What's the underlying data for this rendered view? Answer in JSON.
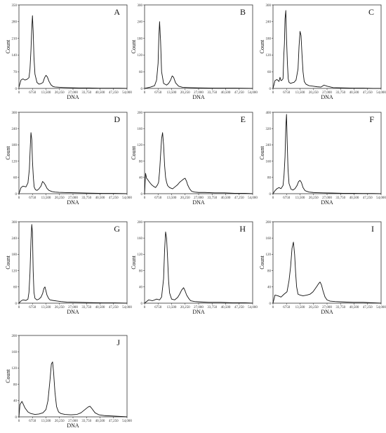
{
  "chart_data": [
    {
      "label": "A",
      "type": "line",
      "xlabel": "DNA",
      "ylabel": "Count",
      "xlim": [
        0,
        54000
      ],
      "ylim": [
        0,
        350
      ],
      "xticks": [
        "0",
        "6750",
        "13,500",
        "20,250",
        "27,000",
        "33,750",
        "40,500",
        "47,250",
        "54,000"
      ],
      "yticks": [
        "0",
        "70",
        "140",
        "210",
        "280",
        "350"
      ],
      "x": [
        0,
        1000,
        2000,
        3000,
        4000,
        5000,
        5500,
        6000,
        6400,
        6750,
        7100,
        7500,
        8000,
        9000,
        10000,
        11000,
        12000,
        12800,
        13500,
        14200,
        15000,
        16000,
        17000,
        18000,
        20000,
        22000,
        25000,
        30000,
        35000,
        40000,
        45000,
        50000,
        54000
      ],
      "y": [
        5,
        35,
        40,
        35,
        38,
        45,
        80,
        160,
        250,
        305,
        240,
        130,
        60,
        25,
        18,
        20,
        25,
        45,
        55,
        48,
        30,
        15,
        8,
        6,
        5,
        4,
        3,
        2,
        2,
        1,
        1,
        1,
        0
      ]
    },
    {
      "label": "B",
      "type": "line",
      "xlabel": "DNA",
      "ylabel": "Count",
      "xlim": [
        0,
        54000
      ],
      "ylim": [
        0,
        300
      ],
      "xticks": [
        "0",
        "6750",
        "13,500",
        "20,250",
        "27,000",
        "33,750",
        "40,500",
        "47,250",
        "54,000"
      ],
      "yticks": [
        "0",
        "60",
        "120",
        "180",
        "240",
        "300"
      ],
      "x": [
        0,
        3000,
        5000,
        6000,
        6750,
        7100,
        7500,
        8000,
        8500,
        9500,
        11000,
        12000,
        13000,
        13800,
        14500,
        15500,
        17000,
        19000,
        22000,
        27000,
        35000,
        45000,
        54000
      ],
      "y": [
        0,
        5,
        10,
        30,
        90,
        180,
        240,
        170,
        60,
        18,
        12,
        18,
        30,
        45,
        40,
        20,
        8,
        4,
        3,
        2,
        1,
        1,
        0
      ]
    },
    {
      "label": "C",
      "type": "line",
      "xlabel": "DNA",
      "ylabel": "Count",
      "xlim": [
        0,
        54000
      ],
      "ylim": [
        0,
        300
      ],
      "xticks": [
        "0",
        "6750",
        "13,500",
        "20,250",
        "27,000",
        "33,750",
        "40,500",
        "47,250",
        "54,000"
      ],
      "yticks": [
        "0",
        "60",
        "120",
        "180",
        "240",
        "300"
      ],
      "x": [
        0,
        1000,
        2000,
        3000,
        3500,
        4000,
        4500,
        5000,
        5400,
        5700,
        6000,
        6400,
        6750,
        7200,
        7600,
        8000,
        8800,
        9500,
        10500,
        11500,
        12500,
        13000,
        13500,
        14000,
        14500,
        15000,
        15600,
        16500,
        18000,
        20000,
        22000,
        24000,
        25500,
        27000,
        30000,
        35000,
        40000,
        45000,
        50000,
        54000
      ],
      "y": [
        0,
        28,
        32,
        25,
        40,
        28,
        30,
        35,
        120,
        160,
        250,
        280,
        180,
        90,
        35,
        22,
        18,
        20,
        22,
        30,
        70,
        150,
        205,
        190,
        120,
        60,
        25,
        15,
        10,
        8,
        6,
        5,
        12,
        8,
        3,
        2,
        1,
        1,
        0,
        0
      ]
    },
    {
      "label": "D",
      "type": "line",
      "xlabel": "DNA",
      "ylabel": "Count",
      "xlim": [
        0,
        54000
      ],
      "ylim": [
        0,
        300
      ],
      "xticks": [
        "0",
        "6750",
        "13,500",
        "20,250",
        "27,000",
        "33,750",
        "40,500",
        "47,250",
        "54,000"
      ],
      "yticks": [
        "0",
        "60",
        "120",
        "180",
        "240",
        "300"
      ],
      "x": [
        0,
        1000,
        2000,
        3500,
        4500,
        5200,
        5700,
        6000,
        6400,
        6750,
        7200,
        7600,
        8200,
        9000,
        10000,
        11000,
        11800,
        12500,
        13200,
        14000,
        15000,
        16500,
        18000,
        20000,
        24000,
        30000,
        35000,
        42000,
        48000,
        54000
      ],
      "y": [
        0,
        22,
        28,
        25,
        40,
        90,
        180,
        225,
        200,
        120,
        60,
        25,
        15,
        12,
        18,
        28,
        45,
        40,
        32,
        20,
        12,
        8,
        6,
        5,
        4,
        3,
        2,
        1,
        1,
        0
      ]
    },
    {
      "label": "E",
      "type": "line",
      "xlabel": "DNA",
      "ylabel": "Count",
      "xlim": [
        0,
        54000
      ],
      "ylim": [
        0,
        200
      ],
      "xticks": [
        "0",
        "6750",
        "13,500",
        "20,250",
        "27,000",
        "33,750",
        "40,500",
        "47,250",
        "54,000"
      ],
      "yticks": [
        "0",
        "40",
        "80",
        "120",
        "160",
        "200"
      ],
      "x": [
        0,
        500,
        1000,
        1500,
        2500,
        3500,
        4500,
        5500,
        6500,
        7000,
        7500,
        8000,
        8500,
        9000,
        9500,
        10000,
        10500,
        11000,
        11500,
        12500,
        14000,
        15500,
        16500,
        17500,
        18500,
        19500,
        20250,
        21000,
        21500,
        22500,
        23500,
        25000,
        27000,
        30000,
        35000,
        40000,
        45000,
        50000,
        54000
      ],
      "y": [
        0,
        50,
        38,
        35,
        28,
        22,
        18,
        15,
        22,
        28,
        55,
        95,
        135,
        150,
        120,
        70,
        40,
        28,
        20,
        15,
        12,
        18,
        22,
        28,
        32,
        36,
        38,
        30,
        22,
        12,
        6,
        4,
        3,
        3,
        2,
        2,
        1,
        1,
        0
      ]
    },
    {
      "label": "F",
      "type": "line",
      "xlabel": "DNA",
      "ylabel": "Count",
      "xlim": [
        0,
        54000
      ],
      "ylim": [
        0,
        400
      ],
      "xticks": [
        "0",
        "6750",
        "13,500",
        "20,250",
        "27,000",
        "33,750",
        "40,500",
        "47,250",
        "54,000"
      ],
      "yticks": [
        "0",
        "80",
        "160",
        "240",
        "320",
        "400"
      ],
      "x": [
        0,
        1000,
        2000,
        3000,
        4000,
        5000,
        5500,
        6000,
        6400,
        6750,
        7100,
        7500,
        8000,
        9000,
        10000,
        11000,
        12000,
        12800,
        13500,
        14200,
        15000,
        16000,
        18000,
        20000,
        22000,
        25000,
        30000,
        35000,
        40000,
        45000,
        50000,
        54000
      ],
      "y": [
        0,
        15,
        25,
        30,
        25,
        40,
        90,
        180,
        330,
        390,
        250,
        120,
        50,
        22,
        18,
        25,
        40,
        60,
        65,
        55,
        30,
        15,
        8,
        6,
        5,
        4,
        3,
        2,
        2,
        1,
        1,
        0
      ]
    },
    {
      "label": "G",
      "type": "line",
      "xlabel": "DNA",
      "ylabel": "Count",
      "xlim": [
        0,
        54000
      ],
      "ylim": [
        0,
        300
      ],
      "xticks": [
        "0",
        "6750",
        "13,500",
        "20,250",
        "27,000",
        "33,750",
        "40,500",
        "47,250",
        "54,000"
      ],
      "yticks": [
        "0",
        "60",
        "120",
        "180",
        "240",
        "300"
      ],
      "x": [
        0,
        1000,
        2000,
        3500,
        4500,
        5000,
        5500,
        6000,
        6400,
        6750,
        7100,
        7500,
        8000,
        9000,
        10000,
        11000,
        11800,
        12500,
        13000,
        13500,
        14000,
        14800,
        15500,
        17000,
        19000,
        21000,
        24000,
        30000,
        36000,
        42000,
        48000,
        54000
      ],
      "y": [
        0,
        8,
        12,
        10,
        15,
        40,
        110,
        230,
        290,
        260,
        120,
        40,
        18,
        12,
        15,
        22,
        35,
        55,
        60,
        45,
        30,
        18,
        12,
        10,
        8,
        6,
        4,
        3,
        2,
        1,
        1,
        0
      ]
    },
    {
      "label": "H",
      "type": "line",
      "xlabel": "DNA",
      "ylabel": "Count",
      "xlim": [
        0,
        54000
      ],
      "ylim": [
        0,
        200
      ],
      "xticks": [
        "0",
        "6750",
        "13,500",
        "20,250",
        "27,000",
        "33,750",
        "40,500",
        "47,250",
        "54,000"
      ],
      "yticks": [
        "0",
        "40",
        "80",
        "120",
        "160",
        "200"
      ],
      "x": [
        0,
        2000,
        4000,
        6000,
        7500,
        8500,
        9500,
        10000,
        10500,
        11000,
        11500,
        12000,
        12500,
        13500,
        15000,
        16500,
        17500,
        18500,
        19500,
        20250,
        21000,
        22000,
        23000,
        25000,
        28000,
        32000,
        38000,
        44000,
        50000,
        54000
      ],
      "y": [
        0,
        8,
        6,
        10,
        8,
        15,
        60,
        130,
        175,
        160,
        110,
        55,
        25,
        10,
        8,
        14,
        22,
        32,
        38,
        30,
        20,
        12,
        6,
        4,
        3,
        2,
        2,
        1,
        1,
        0
      ]
    },
    {
      "label": "I",
      "type": "line",
      "xlabel": "DNA",
      "ylabel": "Count",
      "xlim": [
        0,
        54000
      ],
      "ylim": [
        0,
        200
      ],
      "xticks": [
        "0",
        "6750",
        "13,500",
        "20,250",
        "27,000",
        "33,750",
        "40,500",
        "47,250",
        "54,000"
      ],
      "yticks": [
        "0",
        "40",
        "80",
        "120",
        "160",
        "200"
      ],
      "x": [
        0,
        1000,
        2500,
        4000,
        5500,
        7000,
        8000,
        8800,
        9500,
        10200,
        10800,
        11300,
        11800,
        12500,
        13500,
        15000,
        17000,
        18500,
        20000,
        21000,
        22000,
        22800,
        23500,
        24200,
        25000,
        26000,
        27000,
        28500,
        31000,
        35000,
        40000,
        45000,
        50000,
        54000
      ],
      "y": [
        0,
        20,
        18,
        15,
        22,
        28,
        55,
        90,
        135,
        150,
        120,
        75,
        40,
        22,
        20,
        18,
        20,
        22,
        28,
        35,
        42,
        48,
        52,
        45,
        30,
        15,
        8,
        5,
        4,
        3,
        2,
        2,
        1,
        0
      ]
    },
    {
      "label": "J",
      "type": "line",
      "xlabel": "DNA",
      "ylabel": "Count",
      "xlim": [
        0,
        54000
      ],
      "ylim": [
        0,
        200
      ],
      "xticks": [
        "0",
        "6750",
        "13,500",
        "20,250",
        "27,000",
        "33,750",
        "40,500",
        "47,250",
        "54,000"
      ],
      "yticks": [
        "0",
        "40",
        "80",
        "120",
        "160",
        "200"
      ],
      "x": [
        0,
        500,
        1500,
        3000,
        4500,
        6000,
        8000,
        10000,
        12000,
        13500,
        14500,
        15500,
        16200,
        16800,
        17300,
        18000,
        18800,
        19800,
        21000,
        23000,
        26000,
        29000,
        31000,
        33000,
        34500,
        35500,
        36500,
        38000,
        40000,
        43000,
        47000,
        51000,
        54000
      ],
      "y": [
        0,
        30,
        38,
        22,
        12,
        8,
        6,
        7,
        10,
        18,
        40,
        90,
        130,
        135,
        110,
        60,
        25,
        12,
        8,
        6,
        5,
        6,
        10,
        18,
        24,
        26,
        20,
        10,
        5,
        3,
        2,
        1,
        0
      ]
    }
  ]
}
